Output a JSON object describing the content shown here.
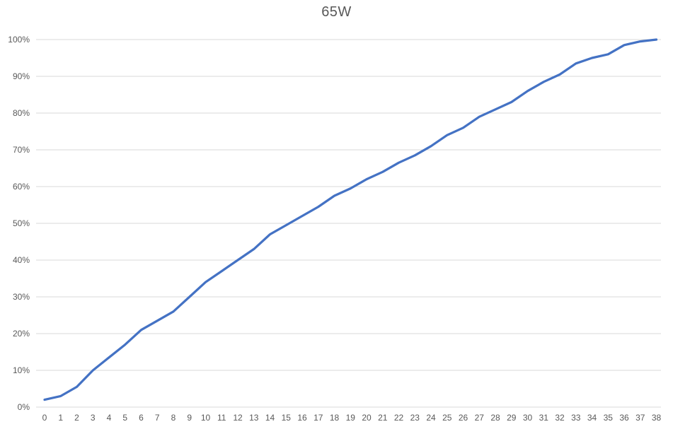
{
  "chart_data": {
    "type": "line",
    "title": "65W",
    "x_tick_labels": [
      "0",
      "1",
      "2",
      "3",
      "4",
      "5",
      "6",
      "7",
      "8",
      "9",
      "10",
      "11",
      "12",
      "13",
      "14",
      "15",
      "16",
      "17",
      "18",
      "19",
      "20",
      "21",
      "22",
      "23",
      "24",
      "25",
      "26",
      "27",
      "28",
      "29",
      "30",
      "31",
      "32",
      "33",
      "34",
      "35",
      "36",
      "37",
      "38"
    ],
    "y_tick_labels": [
      "0%",
      "10%",
      "20%",
      "30%",
      "40%",
      "50%",
      "60%",
      "70%",
      "80%",
      "90%",
      "100%"
    ],
    "ylim": [
      0,
      100
    ],
    "y_tick_step": 10,
    "grid": true,
    "legend": "none",
    "series": [
      {
        "name": "65W",
        "values": [
          2,
          3,
          5.5,
          10,
          13.5,
          17,
          21,
          23.5,
          26,
          30,
          34,
          37,
          40,
          43,
          47,
          49.5,
          52,
          54.5,
          57.5,
          59.5,
          62,
          64,
          66.5,
          68.5,
          71,
          74,
          76,
          79,
          81,
          83,
          86,
          88.5,
          90.5,
          93.5,
          95,
          96,
          98.5,
          99.5,
          100
        ]
      }
    ],
    "colors": {
      "line": "#4472C4",
      "gridline": "#D9D9D9",
      "axis_line": "#D9D9D9",
      "text": "#595959",
      "background": "#FFFFFF"
    }
  }
}
